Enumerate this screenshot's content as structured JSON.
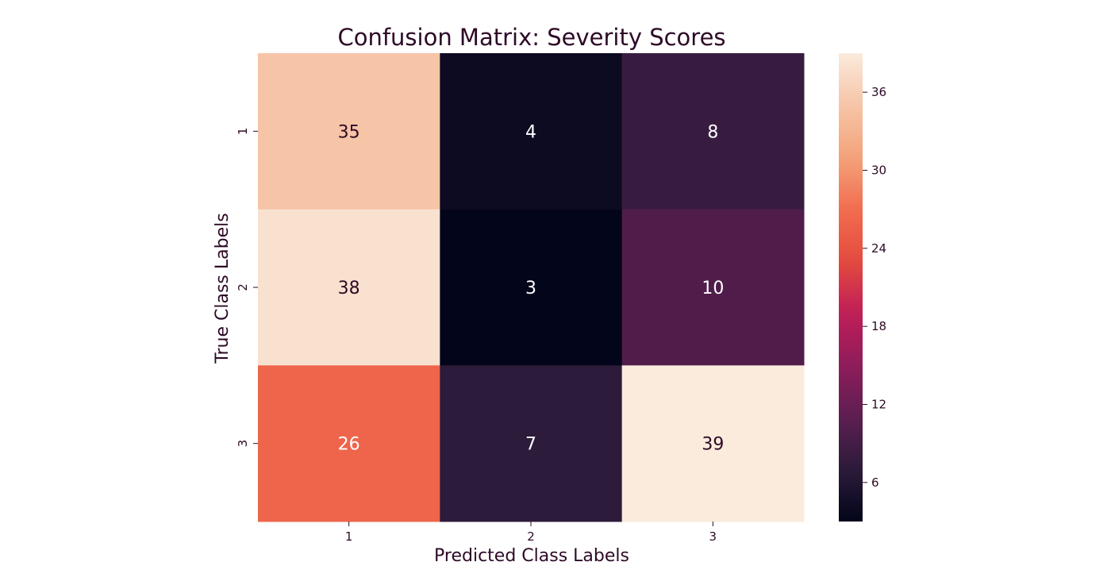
{
  "chart_data": {
    "type": "heatmap",
    "title": "Confusion Matrix: Severity Scores",
    "xlabel": "Predicted Class Labels",
    "ylabel": "True Class Labels",
    "x_categories": [
      "1",
      "2",
      "3"
    ],
    "y_categories": [
      "1",
      "2",
      "3"
    ],
    "values": [
      [
        35,
        4,
        8
      ],
      [
        38,
        3,
        10
      ],
      [
        26,
        7,
        39
      ]
    ],
    "colorbar": {
      "min": 3,
      "max": 39,
      "ticks": [
        6,
        12,
        18,
        24,
        30,
        36
      ],
      "colormap": "rocket"
    },
    "colorscale": [
      "#03051a",
      "#2c1b3a",
      "#5c1e51",
      "#8e1d5b",
      "#bf1d58",
      "#e34b3e",
      "#f16d4f",
      "#f4a37b",
      "#f6c4a6",
      "#faebdd"
    ]
  }
}
